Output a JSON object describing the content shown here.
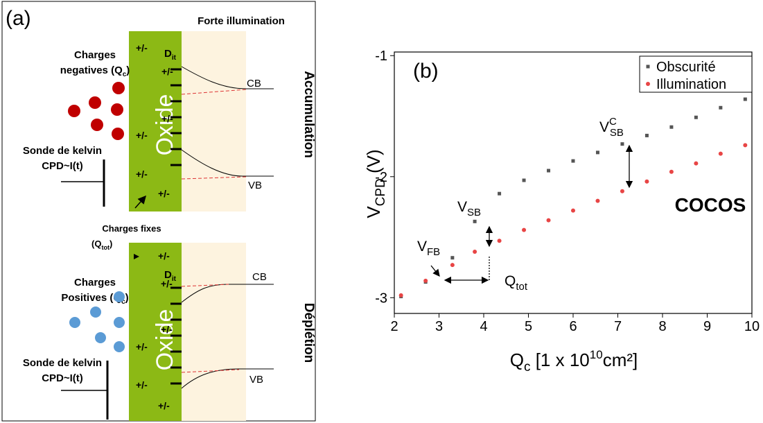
{
  "panel_a": {
    "label": "(a)",
    "header": "Forte illumination",
    "top": {
      "charges": [
        "Charges",
        "negatives (Q",
        "c",
        ")"
      ],
      "dit": [
        "D",
        "it"
      ],
      "pm": [
        "+/-",
        "+/-",
        "+/-",
        "+/-",
        "+/-",
        "+/-"
      ],
      "oxide": "Oxide",
      "cb": "CB",
      "vb": "VB",
      "state": "Accumulation",
      "probe": [
        "Sonde de kelvin",
        "CPD~I(t)"
      ]
    },
    "fixed": [
      "Charges fixes",
      "(Q",
      "tot",
      ")"
    ],
    "bottom": {
      "charges": [
        "Charges",
        "Positives (Q",
        "c",
        ")"
      ],
      "dit": [
        "D",
        "it"
      ],
      "pm": [
        "+/-",
        "+/-",
        "+/-",
        "+/-",
        "+/-",
        "+/-"
      ],
      "oxide": "Oxide",
      "cb": "CB",
      "vb": "VB",
      "state": "Déplétion",
      "probe": [
        "Sonde de kelvin",
        "CPD~I(t)"
      ]
    }
  },
  "chart_data": {
    "type": "scatter",
    "panel_label": "(b)",
    "x_label": [
      "Q",
      "c",
      " [1 x 10",
      "10",
      "cm²]"
    ],
    "y_label": [
      "V",
      "CPD",
      " (V)"
    ],
    "xlim": [
      2,
      10
    ],
    "xticks": [
      2,
      3,
      4,
      5,
      6,
      7,
      8,
      9,
      10
    ],
    "ylim": [
      -3.13,
      -0.97
    ],
    "yticks": [
      -3,
      -2,
      -1
    ],
    "legend": "upper right",
    "series": [
      {
        "name": "Obscurité",
        "color": "#555555",
        "marker": "square",
        "x": [
          2.15,
          2.7,
          3.3,
          3.8,
          4.35,
          4.9,
          5.45,
          6,
          6.55,
          7.1,
          7.65,
          8.2,
          8.75,
          9.3,
          9.85
        ],
        "values": [
          -2.99,
          -2.87,
          -2.67,
          -2.37,
          -2.14,
          -2.03,
          -1.95,
          -1.87,
          -1.8,
          -1.73,
          -1.66,
          -1.59,
          -1.51,
          -1.43,
          -1.36
        ]
      },
      {
        "name": "Illumination",
        "color": "#e84545",
        "marker": "circle",
        "x": [
          2.15,
          2.7,
          3.3,
          3.8,
          4.35,
          4.9,
          5.45,
          6,
          6.55,
          7.1,
          7.65,
          8.2,
          8.75,
          9.3,
          9.85
        ],
        "values": [
          -2.98,
          -2.86,
          -2.73,
          -2.62,
          -2.53,
          -2.44,
          -2.36,
          -2.28,
          -2.2,
          -2.12,
          -2.04,
          -1.96,
          -1.89,
          -1.81,
          -1.74
        ]
      }
    ],
    "annotations": {
      "vfb": [
        "V",
        "FB"
      ],
      "vsb": [
        "V",
        "SB"
      ],
      "vcsb": [
        "V",
        "C",
        "SB"
      ],
      "qtot": [
        "Q",
        "tot"
      ],
      "cocos": "COCOS"
    }
  }
}
